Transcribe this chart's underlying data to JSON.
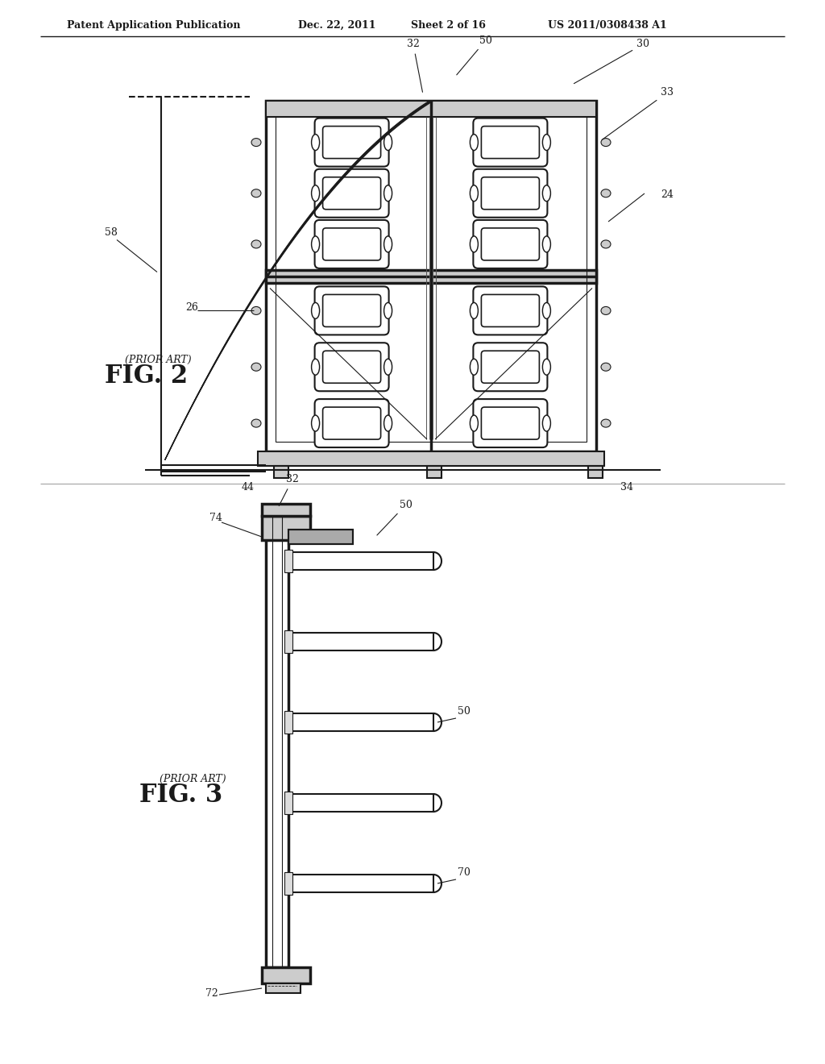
{
  "bg_color": "#ffffff",
  "line_color": "#1a1a1a",
  "header_text": "Patent Application Publication",
  "header_date": "Dec. 22, 2011",
  "header_sheet": "Sheet 2 of 16",
  "header_patent": "US 2011/0308438 A1",
  "fig2_label": "FIG. 2",
  "fig2_prior": "(PRIOR ART)",
  "fig3_label": "FIG. 3",
  "fig3_prior": "(PRIOR ART)",
  "fig2_numbers": [
    "32",
    "50",
    "30",
    "33",
    "24",
    "58",
    "26",
    "44",
    "34"
  ],
  "fig3_numbers": [
    "32",
    "74",
    "50",
    "50",
    "70",
    "72"
  ]
}
